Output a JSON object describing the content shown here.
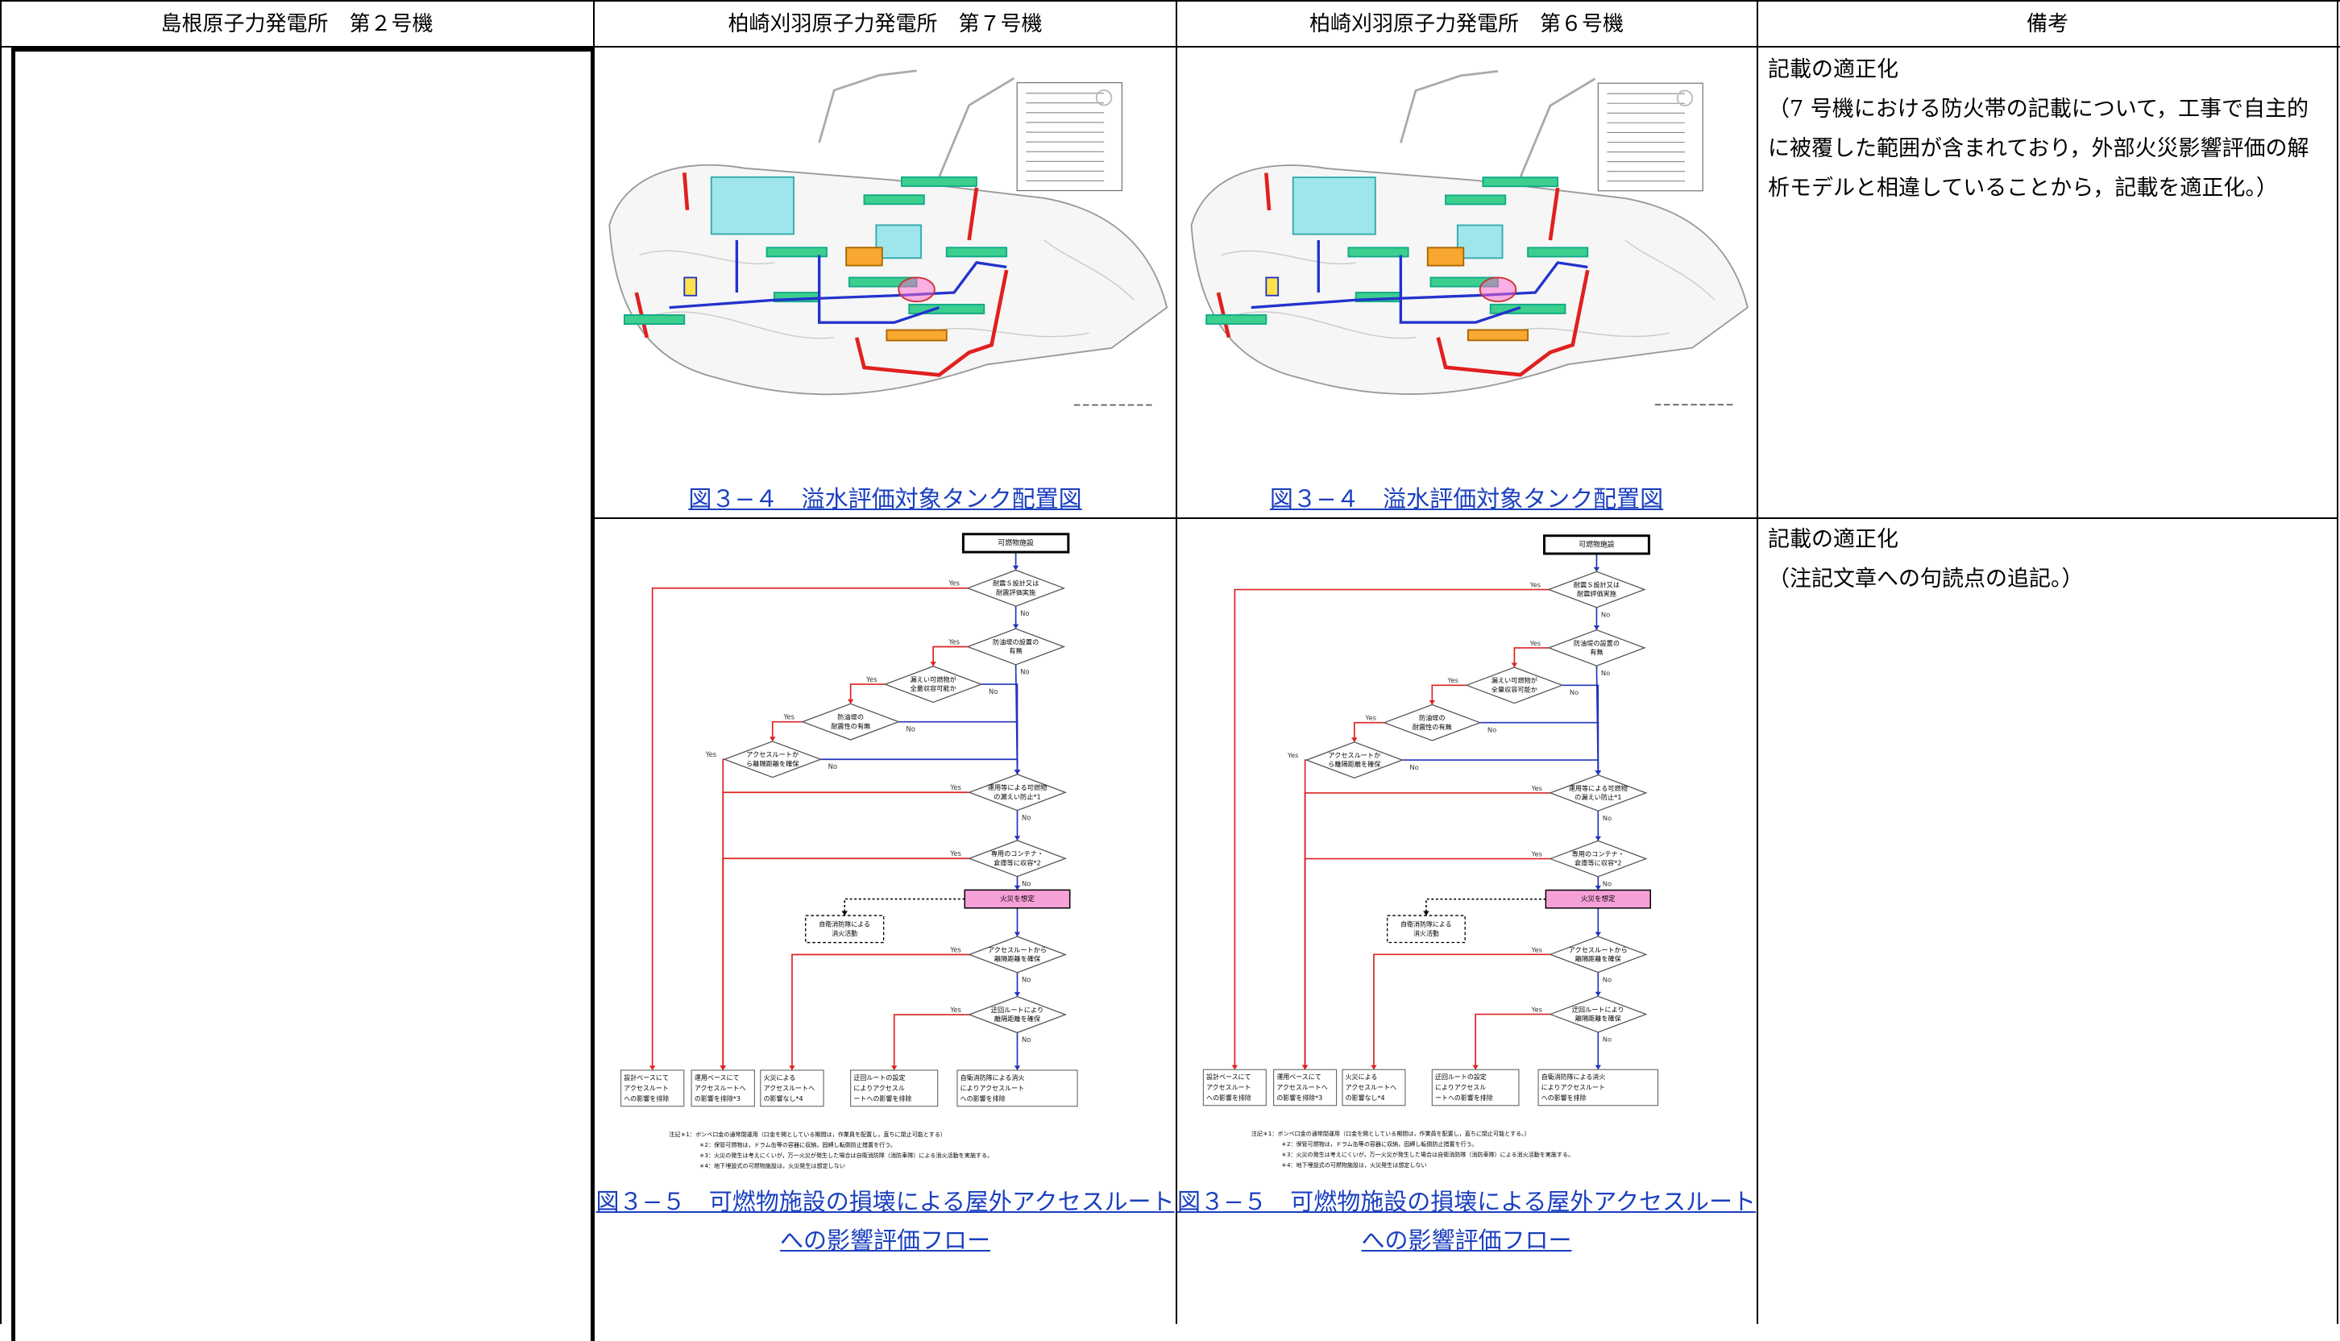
{
  "header": {
    "columns": [
      "島根原子力発電所　第２号機",
      "柏崎刈羽原子力発電所　第７号機",
      "柏崎刈羽原子力発電所　第６号機",
      "備考"
    ]
  },
  "rows": [
    {
      "unit7": {
        "caption": "図３−４　溢水評価対象タンク配置図"
      },
      "unit6": {
        "caption": "図３−４　溢水評価対象タンク配置図"
      },
      "remarks": {
        "heading": "記載の適正化",
        "body": "（7 号機における防火帯の記載について，工事で自主的に被覆した範囲が含まれており，外部火災影響評価の解析モデルと相違していることから，記載を適正化。）"
      }
    },
    {
      "unit7": {
        "caption_lines": [
          "図３−５　可燃物施設の損壊による屋外アクセスルート",
          "への影響評価フロー"
        ],
        "flow": {
          "start": "可燃物施設",
          "yes": "Yes",
          "no": "No",
          "decisions": [
            [
              "耐震Ｓ設計又は",
              "耐震評価実施"
            ],
            [
              "防油堤の設置の",
              "有無"
            ],
            [
              "漏えい可燃物が",
              "全量収容可能か"
            ],
            [
              "防油堤の",
              "耐震性の有無"
            ],
            [
              "アクセスルートか",
              "ら離隔距離を確保"
            ],
            [
              "運用等による可燃物",
              "の漏えい防止*1"
            ],
            [
              "専用のコンテナ・",
              "倉庫等に収容*2"
            ],
            [
              "アクセスルートから",
              "離隔距離を確保"
            ],
            [
              "迂回ルートにより",
              "離隔距離を確保"
            ]
          ],
          "fire": "火災を想定",
          "dashed": [
            "自衛消防隊による",
            "消火活動"
          ],
          "outcomes": [
            [
              "設計ベースにて",
              "アクセスルート",
              "への影響を排除"
            ],
            [
              "運用ベースにて",
              "アクセスルートへ",
              "の影響を排除*3"
            ],
            [
              "火災による",
              "アクセスルートへ",
              "の影響なし*4"
            ],
            [
              "迂回ルートの設定",
              "によりアクセスル",
              "ートへの影響を排除"
            ],
            [
              "自衛消防隊による消火",
              "によりアクセスルート",
              "への影響を排除"
            ]
          ],
          "notes": [
            "注記＊1：ボンベ口金の通常閉運用（口金を開としている期間は，作業員を配置し，直ちに閉止可能とする）",
            "＊2：保管可燃物は，ドラム缶等の容器に収納，固縛し転倒防止措置を行う。",
            "＊3：火災の発生は考えにくいが，万一火災が発生した場合は自衛消防隊（消防車隊）による消火活動を実施する。",
            "＊4：地下埋設式の可燃物施設は，火災発生は想定しない"
          ]
        }
      },
      "unit6": {
        "caption_lines": [
          "図３−５　可燃物施設の損壊による屋外アクセスルート",
          "への影響評価フロー"
        ],
        "flow": {
          "start": "可燃物施設",
          "yes": "Yes",
          "no": "No",
          "decisions": [
            [
              "耐震Ｓ設計又は",
              "耐震評価実施"
            ],
            [
              "防油堤の設置の",
              "有無"
            ],
            [
              "漏えい可燃物が",
              "全量収容可能か"
            ],
            [
              "防油堤の",
              "耐震性の有無"
            ],
            [
              "アクセスルートか",
              "ら離隔距離を確保"
            ],
            [
              "運用等による可燃物",
              "の漏えい防止*1"
            ],
            [
              "専用のコンテナ・",
              "倉庫等に収容*2"
            ],
            [
              "アクセスルートから",
              "離隔距離を確保"
            ],
            [
              "迂回ルートにより",
              "離隔距離を確保"
            ]
          ],
          "fire": "火災を想定",
          "dashed": [
            "自衛消防隊による",
            "消火活動"
          ],
          "outcomes": [
            [
              "設計ベースにて",
              "アクセスルート",
              "への影響を排除"
            ],
            [
              "運用ベースにて",
              "アクセスルートへ",
              "の影響を排除*3"
            ],
            [
              "火災による",
              "アクセスルートへ",
              "の影響なし*4"
            ],
            [
              "迂回ルートの設定",
              "によりアクセスル",
              "ートへの影響を排除"
            ],
            [
              "自衛消防隊による消火",
              "によりアクセスルート",
              "への影響を排除"
            ]
          ],
          "notes": [
            "注記＊1：ボンベ口金の通常閉運用（口金を開としている期間は，作業員を配置し，直ちに閉止可能とする。）",
            "＊2：保管可燃物は，ドラム缶等の容器に収納，固縛し転倒防止措置を行う。",
            "＊3：火災の発生は考えにくいが，万一火災が発生した場合は自衛消防隊（消防車隊）による消火活動を実施する。",
            "＊4：地下埋設式の可燃物施設は，火災発生は想定しない"
          ]
        }
      },
      "remarks": {
        "heading": "記載の適正化",
        "body": "（注記文章への句読点の追記。）"
      }
    }
  ]
}
